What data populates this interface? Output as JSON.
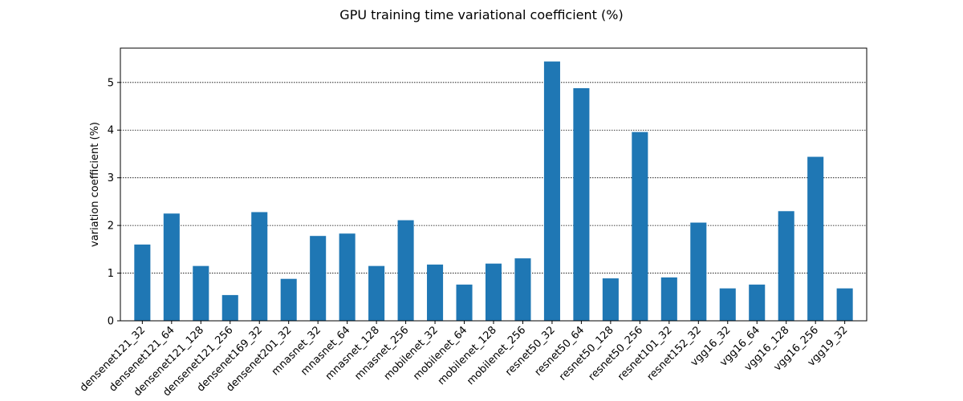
{
  "chart_data": {
    "type": "bar",
    "title": "GPU training time variational coefficient (%)",
    "xlabel": "",
    "ylabel": "variation coefficient (%)",
    "ylim": [
      0,
      5.72
    ],
    "yticks": [
      0,
      1,
      2,
      3,
      4,
      5
    ],
    "grid": "y-dotted",
    "bar_color": "#1f77b4",
    "categories": [
      "densenet121_32",
      "densenet121_64",
      "densenet121_128",
      "densenet121_256",
      "densenet169_32",
      "densenet201_32",
      "mnasnet_32",
      "mnasnet_64",
      "mnasnet_128",
      "mnasnet_256",
      "mobilenet_32",
      "mobilenet_64",
      "mobilenet_128",
      "mobilenet_256",
      "resnet50_32",
      "resnet50_64",
      "resnet50_128",
      "resnet50_256",
      "resnet101_32",
      "resnet152_32",
      "vgg16_32",
      "vgg16_64",
      "vgg16_128",
      "vgg16_256",
      "vgg19_32"
    ],
    "values": [
      1.6,
      2.25,
      1.15,
      0.54,
      2.28,
      0.88,
      1.78,
      1.83,
      1.15,
      2.11,
      1.18,
      0.76,
      1.2,
      1.31,
      5.44,
      4.88,
      0.89,
      3.96,
      0.91,
      2.06,
      0.68,
      0.76,
      2.3,
      3.44,
      0.68
    ]
  }
}
